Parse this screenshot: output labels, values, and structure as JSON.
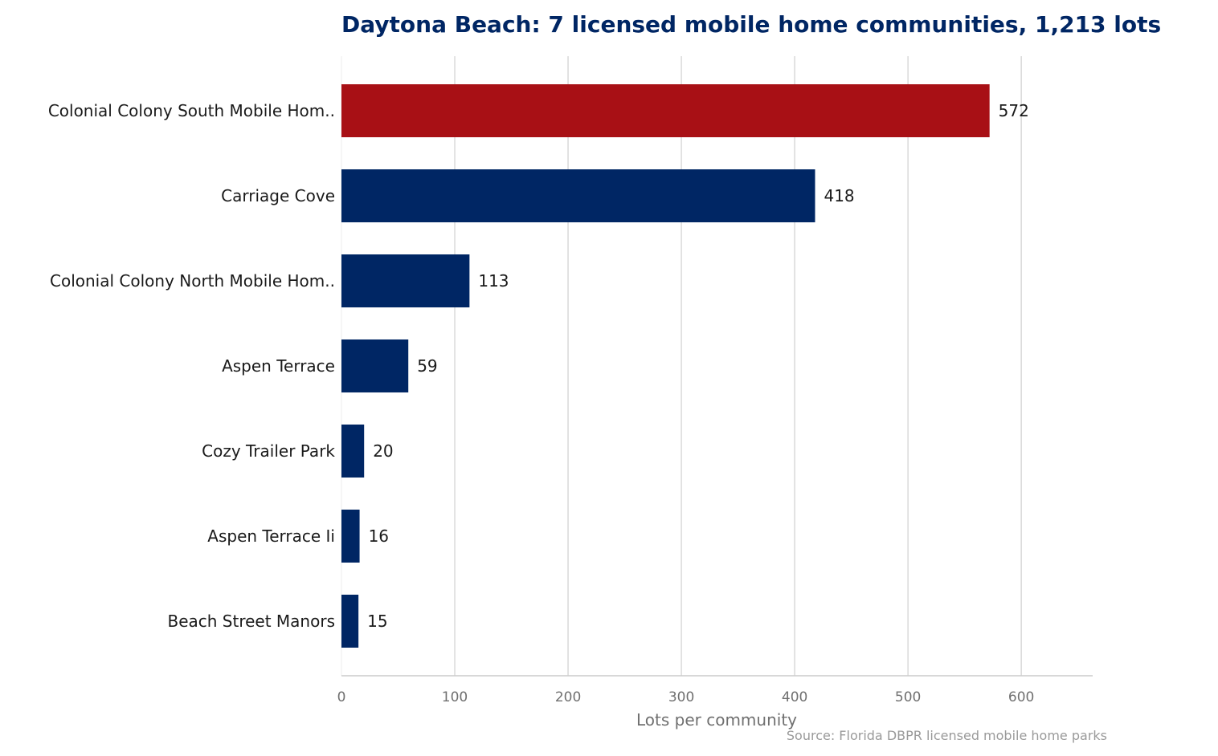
{
  "chart_data": {
    "type": "bar",
    "orientation": "horizontal",
    "title": "Daytona Beach: 7 licensed mobile home communities, 1,213 lots",
    "xlabel": "Lots per community",
    "ylabel": "",
    "source": "Source: Florida DBPR licensed mobile home parks",
    "categories": [
      "Colonial Colony South Mobile Hom..",
      "Carriage Cove",
      "Colonial Colony North Mobile Hom..",
      "Aspen Terrace",
      "Cozy Trailer Park",
      "Aspen Terrace Ii",
      "Beach Street Manors"
    ],
    "values": [
      572,
      418,
      113,
      59,
      20,
      16,
      15
    ],
    "value_labels": [
      "572",
      "418",
      "113",
      "59",
      "20",
      "16",
      "15"
    ],
    "xlim": [
      0,
      663
    ],
    "xticks": [
      0,
      100,
      200,
      300,
      400,
      500,
      600
    ],
    "xtick_labels": [
      "0",
      "100",
      "200",
      "300",
      "400",
      "500",
      "600"
    ],
    "grid": "vertical",
    "highlight_index": 0,
    "colors": {
      "bar": "#002664",
      "highlight": "#a81015",
      "title": "#002664",
      "grid": "#d9d9d9",
      "axis": "#cccccc"
    }
  }
}
